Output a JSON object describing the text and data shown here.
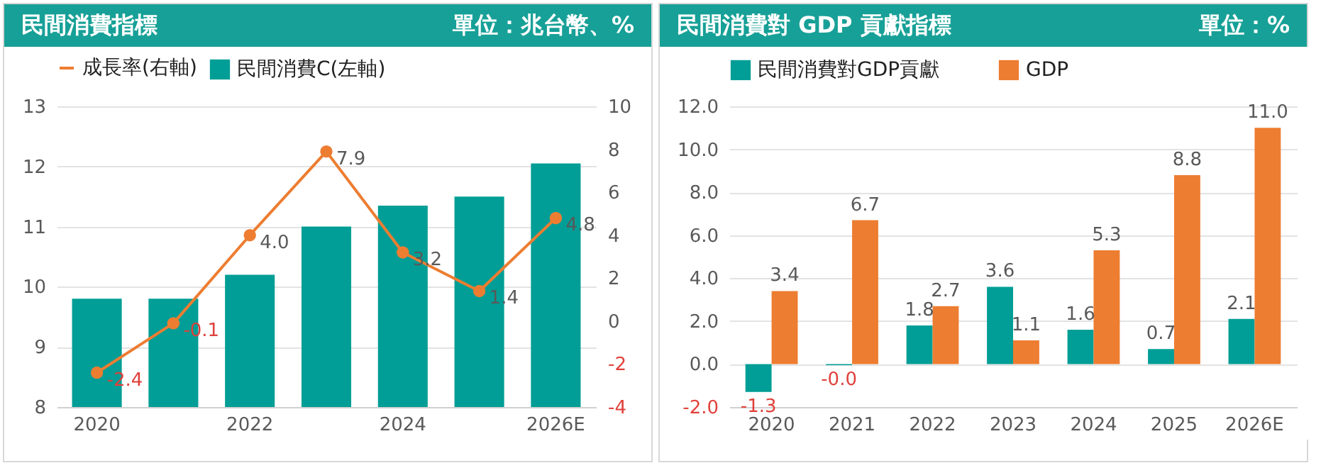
{
  "chart_data": [
    {
      "type": "bar",
      "title": "民間消費指標",
      "annotations": [
        "單位：兆台幣、%"
      ],
      "categories": [
        "2020",
        null,
        "2022",
        null,
        "2024",
        null,
        "2026E"
      ],
      "series": [
        {
          "name": "民間消費C(左軸)",
          "color": "#009e96",
          "type": "bar",
          "values": [
            9.8,
            9.8,
            10.2,
            11.0,
            11.35,
            11.5,
            12.05
          ]
        },
        {
          "name": "成長率(右軸)",
          "color": "#ed7d31",
          "type": "line",
          "axis": "y2",
          "marker": "circle",
          "values": [
            -2.4,
            -0.1,
            4.0,
            7.9,
            3.2,
            1.4,
            4.8
          ],
          "value_labels": [
            "-2.4",
            "-0.1",
            "4.0",
            "7.9",
            "3.2",
            "1.4",
            "4.8"
          ]
        }
      ],
      "ylim": [
        8,
        13
      ],
      "yticks": [
        8,
        9,
        10,
        11,
        12,
        13
      ],
      "y2lim": [
        -4,
        10
      ],
      "y2ticks": [
        -4,
        -2,
        0,
        2,
        4,
        6,
        8,
        10
      ],
      "grid": "y",
      "legend": "top"
    },
    {
      "type": "bar",
      "title": "民間消費對 GDP 貢獻指標",
      "annotations": [
        "單位：%"
      ],
      "categories": [
        "2020",
        "2021",
        "2022",
        "2023",
        "2024",
        "2025",
        "2026E"
      ],
      "series": [
        {
          "name": "民間消費對GDP貢獻",
          "color": "#009e96",
          "values": [
            -1.3,
            -0.05,
            1.8,
            3.6,
            1.6,
            0.7,
            2.1
          ],
          "value_labels": [
            "-1.3",
            "-0.0",
            "1.8",
            "3.6",
            "1.6",
            "0.7",
            "2.1"
          ]
        },
        {
          "name": "GDP",
          "color": "#ed7d31",
          "values": [
            3.4,
            6.7,
            2.7,
            1.1,
            5.3,
            8.8,
            11.0
          ],
          "value_labels": [
            "3.4",
            "6.7",
            "2.7",
            "1.1",
            "5.3",
            "8.8",
            "11.0"
          ]
        }
      ],
      "ylim": [
        -2,
        12
      ],
      "yticks": [
        {
          "value": -2,
          "label": "-2.0"
        },
        {
          "value": 0,
          "label": "0.0"
        },
        {
          "value": 2,
          "label": "2.0"
        },
        {
          "value": 4,
          "label": "4.0"
        },
        {
          "value": 6,
          "label": "6.0"
        },
        {
          "value": 8,
          "label": "8.0"
        },
        {
          "value": 10,
          "label": "10.0"
        },
        {
          "value": 12,
          "label": "12.0"
        }
      ],
      "grid": "y",
      "legend": "top"
    }
  ]
}
